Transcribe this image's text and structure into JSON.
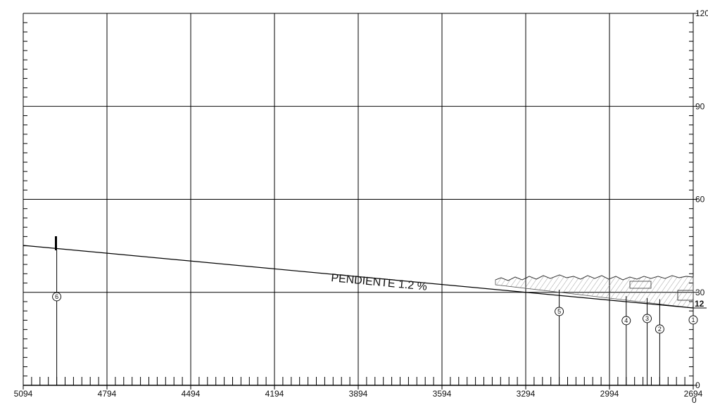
{
  "x_axis": {
    "labels": [
      "5094",
      "4794",
      "4494",
      "4194",
      "3894",
      "3594",
      "3294",
      "2994",
      "2694"
    ],
    "right_sublabel": "0"
  },
  "y_axis": {
    "labels": [
      "120",
      "90",
      "60",
      "30",
      "0"
    ],
    "reference_value": "12"
  },
  "slope": {
    "label": "PENDIENTE 1.2 %"
  },
  "markers": [
    {
      "id": "1",
      "station": 2694
    },
    {
      "id": "2",
      "station": 2814
    },
    {
      "id": "3",
      "station": 2859
    },
    {
      "id": "4",
      "station": 2934
    },
    {
      "id": "5",
      "station": 3174
    },
    {
      "id": "6",
      "station": 4974
    }
  ]
}
